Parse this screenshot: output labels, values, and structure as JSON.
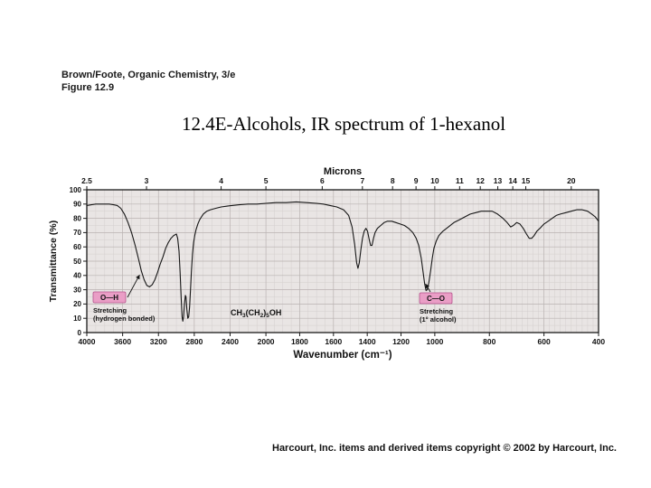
{
  "page": {
    "attribution_line1": "Brown/Foote, Organic Chemistry, 3/e",
    "attribution_line2": "Figure 12.9",
    "title": "12.4E-Alcohols, IR spectrum of 1-hexanol",
    "copyright": "Harcourt, Inc. items and derived items copyright © 2002 by Harcourt, Inc."
  },
  "chart_data": {
    "type": "line",
    "title": "IR spectrum of 1-hexanol",
    "top_axis": {
      "label": "Microns",
      "ticks": [
        2.5,
        3,
        4,
        5,
        6,
        7,
        8,
        9,
        10,
        11,
        12,
        13,
        14,
        15,
        20
      ]
    },
    "x_axis": {
      "label": "Wavenumber (cm⁻¹)",
      "ticks": [
        4000,
        3600,
        3200,
        2800,
        2400,
        2000,
        1800,
        1600,
        1400,
        1200,
        1000,
        800,
        600,
        400
      ],
      "range": [
        4000,
        400
      ],
      "scale": "piecewise linear; scale expands below 2000 and below 1000 cm⁻¹"
    },
    "y_axis": {
      "label": "Transmittance (%)",
      "ticks": [
        0,
        10,
        20,
        30,
        40,
        50,
        60,
        70,
        80,
        90,
        100
      ],
      "range": [
        0,
        100
      ]
    },
    "grid": true,
    "legend": "none",
    "series": [
      {
        "name": "1-hexanol",
        "points": [
          [
            4000,
            89
          ],
          [
            3950,
            89.5
          ],
          [
            3900,
            90
          ],
          [
            3850,
            90
          ],
          [
            3800,
            90
          ],
          [
            3750,
            90
          ],
          [
            3700,
            89.5
          ],
          [
            3660,
            89
          ],
          [
            3620,
            87
          ],
          [
            3580,
            83
          ],
          [
            3540,
            77
          ],
          [
            3500,
            70
          ],
          [
            3460,
            61
          ],
          [
            3420,
            51
          ],
          [
            3390,
            43
          ],
          [
            3360,
            37
          ],
          [
            3330,
            33
          ],
          [
            3300,
            32
          ],
          [
            3270,
            33.5
          ],
          [
            3240,
            37
          ],
          [
            3210,
            42
          ],
          [
            3180,
            48
          ],
          [
            3150,
            53
          ],
          [
            3120,
            59
          ],
          [
            3090,
            63
          ],
          [
            3060,
            66
          ],
          [
            3030,
            68
          ],
          [
            3000,
            69
          ],
          [
            2985,
            66
          ],
          [
            2970,
            57
          ],
          [
            2958,
            42
          ],
          [
            2946,
            24
          ],
          [
            2936,
            11
          ],
          [
            2928,
            8
          ],
          [
            2920,
            11
          ],
          [
            2910,
            20
          ],
          [
            2900,
            26
          ],
          [
            2892,
            25
          ],
          [
            2882,
            16
          ],
          [
            2872,
            10
          ],
          [
            2862,
            11
          ],
          [
            2852,
            18
          ],
          [
            2842,
            30
          ],
          [
            2832,
            43
          ],
          [
            2820,
            55
          ],
          [
            2808,
            63
          ],
          [
            2795,
            68
          ],
          [
            2780,
            72
          ],
          [
            2760,
            76
          ],
          [
            2740,
            79
          ],
          [
            2720,
            81
          ],
          [
            2700,
            83
          ],
          [
            2660,
            85
          ],
          [
            2620,
            86
          ],
          [
            2560,
            87
          ],
          [
            2500,
            88
          ],
          [
            2440,
            88.5
          ],
          [
            2380,
            89
          ],
          [
            2300,
            89.5
          ],
          [
            2200,
            90
          ],
          [
            2100,
            90
          ],
          [
            2000,
            90.5
          ],
          [
            1940,
            91
          ],
          [
            1880,
            91
          ],
          [
            1820,
            91.5
          ],
          [
            1760,
            91
          ],
          [
            1700,
            90.5
          ],
          [
            1660,
            90
          ],
          [
            1620,
            89
          ],
          [
            1580,
            88
          ],
          [
            1540,
            86
          ],
          [
            1510,
            82
          ],
          [
            1490,
            74
          ],
          [
            1475,
            62
          ],
          [
            1463,
            49
          ],
          [
            1455,
            45
          ],
          [
            1447,
            49
          ],
          [
            1438,
            58
          ],
          [
            1428,
            66
          ],
          [
            1418,
            71
          ],
          [
            1408,
            73
          ],
          [
            1398,
            71
          ],
          [
            1388,
            65
          ],
          [
            1380,
            61
          ],
          [
            1372,
            61
          ],
          [
            1363,
            66
          ],
          [
            1354,
            70
          ],
          [
            1340,
            73
          ],
          [
            1320,
            75
          ],
          [
            1300,
            77
          ],
          [
            1280,
            78
          ],
          [
            1255,
            78
          ],
          [
            1230,
            77
          ],
          [
            1205,
            76
          ],
          [
            1180,
            75
          ],
          [
            1155,
            73
          ],
          [
            1130,
            70
          ],
          [
            1110,
            66
          ],
          [
            1095,
            61
          ],
          [
            1080,
            52
          ],
          [
            1070,
            43
          ],
          [
            1060,
            34
          ],
          [
            1052,
            29.5
          ],
          [
            1045,
            30
          ],
          [
            1035,
            35
          ],
          [
            1025,
            43
          ],
          [
            1015,
            52
          ],
          [
            1005,
            59
          ],
          [
            995,
            64
          ],
          [
            985,
            68
          ],
          [
            970,
            71
          ],
          [
            950,
            74
          ],
          [
            930,
            77
          ],
          [
            910,
            79
          ],
          [
            890,
            81
          ],
          [
            870,
            83
          ],
          [
            850,
            84
          ],
          [
            830,
            85
          ],
          [
            810,
            85
          ],
          [
            790,
            85
          ],
          [
            770,
            83
          ],
          [
            750,
            80
          ],
          [
            735,
            77
          ],
          [
            722,
            74
          ],
          [
            712,
            75
          ],
          [
            700,
            77
          ],
          [
            688,
            76
          ],
          [
            676,
            73
          ],
          [
            664,
            69
          ],
          [
            654,
            66
          ],
          [
            645,
            66
          ],
          [
            636,
            68
          ],
          [
            626,
            71
          ],
          [
            615,
            73
          ],
          [
            600,
            76
          ],
          [
            585,
            78
          ],
          [
            570,
            80
          ],
          [
            555,
            82
          ],
          [
            540,
            83
          ],
          [
            520,
            84
          ],
          [
            500,
            85
          ],
          [
            480,
            86
          ],
          [
            460,
            86
          ],
          [
            440,
            85
          ],
          [
            425,
            83
          ],
          [
            412,
            81
          ],
          [
            400,
            78
          ]
        ]
      }
    ],
    "annotations": {
      "oh": {
        "box_label": "O—H",
        "line1": "Stretching",
        "line2": "(hydrogen bonded)",
        "points_to_wavenumber": 3390,
        "points_to_transmittance": 43
      },
      "co": {
        "box_label": "C—O",
        "line1": "Stretching",
        "line2": "(1° alcohol)",
        "points_to_wavenumber": 1060,
        "points_to_transmittance": 36
      },
      "formula": {
        "plain": "CH3(CH2)5OH",
        "parts": [
          [
            "CH",
            false
          ],
          [
            "3",
            true
          ],
          [
            "(CH",
            false
          ],
          [
            "2",
            true
          ],
          [
            ")",
            false
          ],
          [
            "5",
            true
          ],
          [
            "OH",
            false
          ]
        ]
      }
    },
    "colors": {
      "plot_bg": "#e9e5e4",
      "grid_minor": "#d4cfce",
      "grid_major": "#b9b2b1",
      "line": "#161616",
      "axis": "#1a1a1a",
      "annotation_box_bg": "#ea9ec6",
      "annotation_box_border": "#b4528c"
    }
  }
}
